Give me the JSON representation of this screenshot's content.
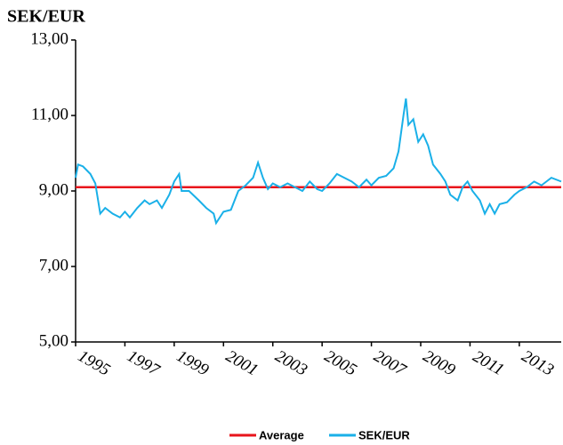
{
  "chart_data": {
    "type": "line",
    "title": "SEK/EUR",
    "xlim": [
      1995,
      2014.7
    ],
    "xticks": [
      1995,
      1997,
      1999,
      2001,
      2003,
      2005,
      2007,
      2009,
      2011,
      2013
    ],
    "ylim": [
      5,
      13
    ],
    "yticks": [
      {
        "value": 5,
        "label": "5,00"
      },
      {
        "value": 7,
        "label": "7,00"
      },
      {
        "value": 9,
        "label": "9,00"
      },
      {
        "value": 11,
        "label": "11,00"
      },
      {
        "value": 13,
        "label": "13,00"
      }
    ],
    "series": [
      {
        "name": "Average",
        "color": "#e8141b",
        "x": [
          1995,
          2014.7
        ],
        "values": [
          9.1,
          9.1
        ]
      },
      {
        "name": "SEK/EUR",
        "color": "#1ab0e8",
        "x": [
          1995.0,
          1995.1,
          1995.3,
          1995.6,
          1995.8,
          1996.0,
          1996.2,
          1996.5,
          1996.8,
          1997.0,
          1997.2,
          1997.5,
          1997.8,
          1998.0,
          1998.3,
          1998.5,
          1998.8,
          1999.0,
          1999.2,
          1999.3,
          1999.6,
          2000.0,
          2000.3,
          2000.6,
          2000.7,
          2001.0,
          2001.3,
          2001.6,
          2001.9,
          2002.2,
          2002.4,
          2002.6,
          2002.8,
          2003.0,
          2003.3,
          2003.6,
          2003.9,
          2004.2,
          2004.5,
          2004.8,
          2005.0,
          2005.3,
          2005.6,
          2005.9,
          2006.2,
          2006.5,
          2006.8,
          2007.0,
          2007.3,
          2007.6,
          2007.9,
          2008.1,
          2008.3,
          2008.4,
          2008.5,
          2008.7,
          2008.9,
          2009.1,
          2009.3,
          2009.5,
          2009.8,
          2010.0,
          2010.2,
          2010.5,
          2010.7,
          2010.9,
          2011.1,
          2011.4,
          2011.6,
          2011.8,
          2012.0,
          2012.2,
          2012.5,
          2012.8,
          2013.0,
          2013.3,
          2013.6,
          2013.9,
          2014.1,
          2014.3,
          2014.7
        ],
        "values": [
          9.35,
          9.7,
          9.65,
          9.45,
          9.2,
          8.4,
          8.55,
          8.4,
          8.3,
          8.45,
          8.3,
          8.55,
          8.75,
          8.65,
          8.75,
          8.55,
          8.9,
          9.25,
          9.45,
          9.0,
          9.0,
          8.75,
          8.55,
          8.4,
          8.15,
          8.45,
          8.5,
          9.0,
          9.15,
          9.35,
          9.75,
          9.35,
          9.05,
          9.2,
          9.1,
          9.2,
          9.1,
          9.0,
          9.25,
          9.05,
          9.0,
          9.2,
          9.45,
          9.35,
          9.25,
          9.1,
          9.3,
          9.15,
          9.35,
          9.4,
          9.6,
          10.05,
          11.0,
          11.45,
          10.75,
          10.9,
          10.3,
          10.5,
          10.2,
          9.7,
          9.45,
          9.25,
          8.9,
          8.75,
          9.1,
          9.25,
          9.0,
          8.75,
          8.4,
          8.65,
          8.4,
          8.65,
          8.7,
          8.9,
          9.0,
          9.1,
          9.25,
          9.15,
          9.25,
          9.35,
          9.25
        ]
      }
    ]
  }
}
